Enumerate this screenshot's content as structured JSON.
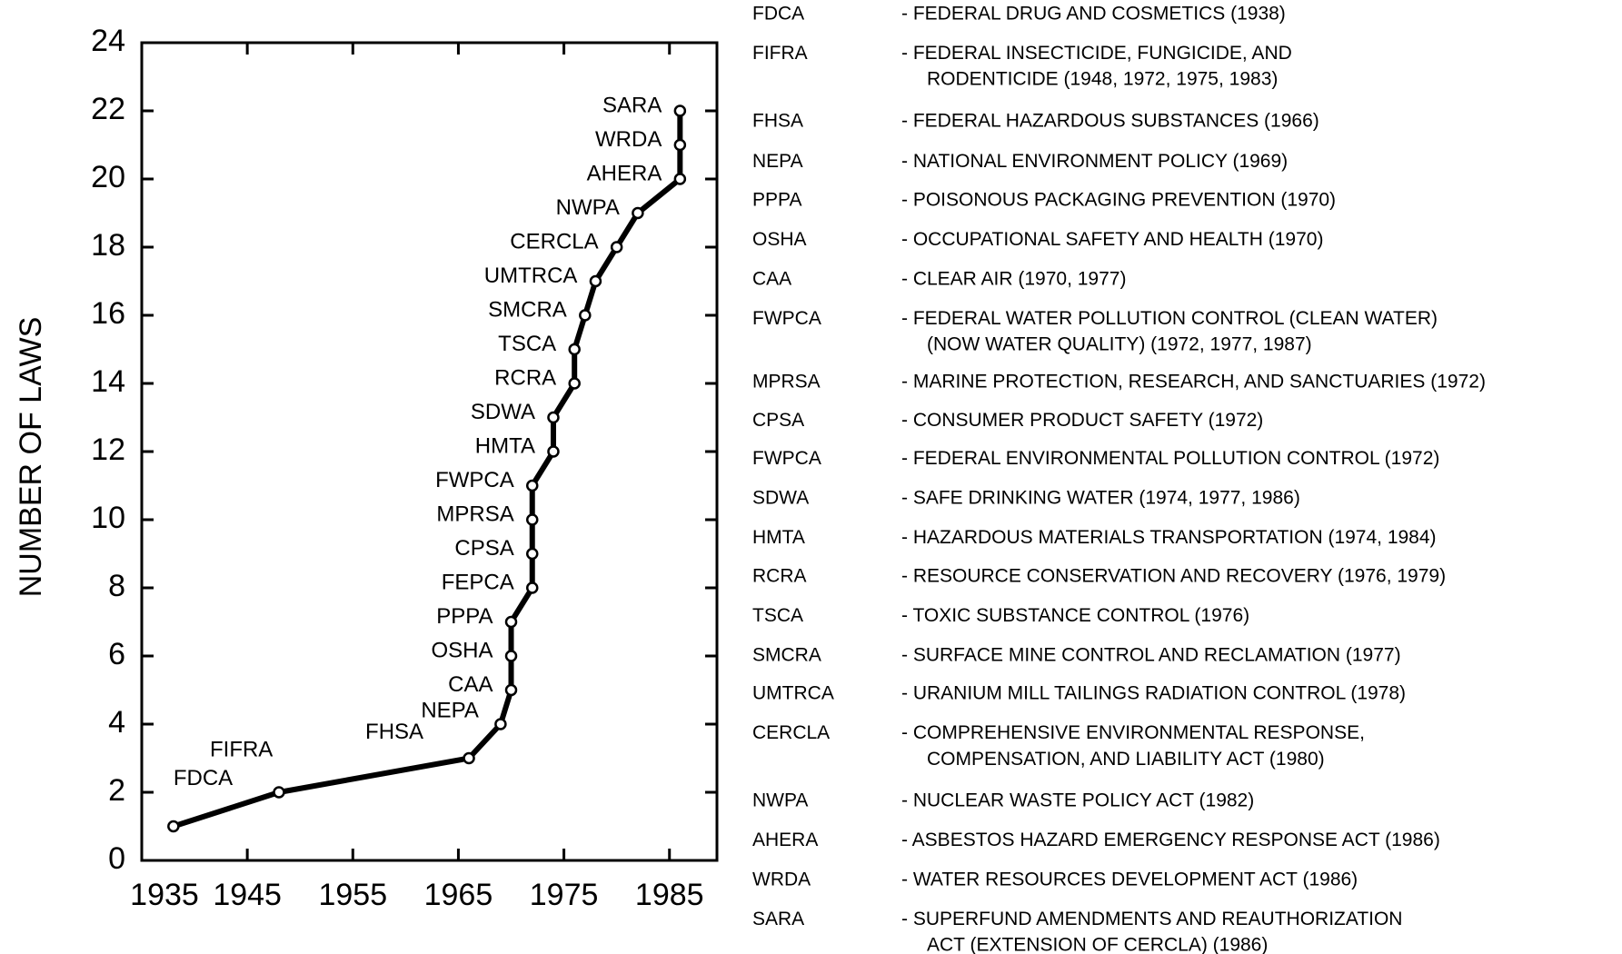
{
  "chart_data": {
    "type": "line",
    "y_label": "NUMBER OF LAWS",
    "x": [
      1938,
      1948,
      1966,
      1969,
      1970,
      1970,
      1970,
      1972,
      1972,
      1972,
      1972,
      1974,
      1974,
      1976,
      1976,
      1977,
      1978,
      1980,
      1982,
      1986,
      1986,
      1986
    ],
    "values": [
      1,
      2,
      3,
      4,
      5,
      6,
      7,
      8,
      9,
      10,
      11,
      12,
      13,
      14,
      15,
      16,
      17,
      18,
      19,
      20,
      21,
      22
    ],
    "point_labels": [
      "FDCA",
      "FIFRA",
      "FHSA",
      "NEPA",
      "CAA",
      "OSHA",
      "PPPA",
      "FEPCA",
      "CPSA",
      "MPRSA",
      "FWPCA",
      "HMTA",
      "SDWA",
      "RCRA",
      "TSCA",
      "SMCRA",
      "UMTRCA",
      "CERCLA",
      "NWPA",
      "AHERA",
      "WRDA",
      "SARA"
    ],
    "color": "#000000",
    "xlim": [
      1935,
      1989.5
    ],
    "xticks": [
      1935,
      1945,
      1955,
      1965,
      1975,
      1985
    ],
    "ylim": [
      0,
      24
    ],
    "yticks": [
      0,
      2,
      4,
      6,
      8,
      10,
      12,
      14,
      16,
      18,
      20,
      22,
      24
    ]
  },
  "glossary": [
    {
      "abbr": "FDCA",
      "lines": [
        "- FEDERAL DRUG AND COSMETICS (1938)"
      ]
    },
    {
      "abbr": "FIFRA",
      "lines": [
        "- FEDERAL INSECTICIDE, FUNGICIDE, AND",
        "RODENTICIDE (1948, 1972, 1975, 1983)"
      ]
    },
    {
      "abbr": "FHSA",
      "lines": [
        "- FEDERAL HAZARDOUS SUBSTANCES (1966)"
      ]
    },
    {
      "abbr": "NEPA",
      "lines": [
        "- NATIONAL ENVIRONMENT POLICY (1969)"
      ]
    },
    {
      "abbr": "PPPA",
      "lines": [
        "- POISONOUS PACKAGING PREVENTION (1970)"
      ]
    },
    {
      "abbr": "OSHA",
      "lines": [
        "- OCCUPATIONAL SAFETY AND HEALTH (1970)"
      ]
    },
    {
      "abbr": "CAA",
      "lines": [
        "- CLEAR AIR (1970, 1977)"
      ]
    },
    {
      "abbr": "FWPCA",
      "lines": [
        "- FEDERAL WATER POLLUTION CONTROL (CLEAN WATER)",
        "(NOW WATER QUALITY) (1972, 1977, 1987)"
      ]
    },
    {
      "abbr": "MPRSA",
      "lines": [
        "- MARINE PROTECTION, RESEARCH, AND SANCTUARIES (1972)"
      ]
    },
    {
      "abbr": "CPSA",
      "lines": [
        "- CONSUMER PRODUCT SAFETY (1972)"
      ]
    },
    {
      "abbr": "FWPCA",
      "lines": [
        "- FEDERAL ENVIRONMENTAL POLLUTION CONTROL (1972)"
      ]
    },
    {
      "abbr": "SDWA",
      "lines": [
        "- SAFE DRINKING WATER (1974, 1977, 1986)"
      ]
    },
    {
      "abbr": "HMTA",
      "lines": [
        "- HAZARDOUS MATERIALS TRANSPORTATION (1974, 1984)"
      ]
    },
    {
      "abbr": "RCRA",
      "lines": [
        "- RESOURCE CONSERVATION AND RECOVERY (1976, 1979)"
      ]
    },
    {
      "abbr": "TSCA",
      "lines": [
        "- TOXIC SUBSTANCE CONTROL (1976)"
      ]
    },
    {
      "abbr": "SMCRA",
      "lines": [
        "- SURFACE MINE CONTROL AND RECLAMATION (1977)"
      ]
    },
    {
      "abbr": "UMTRCA",
      "lines": [
        "- URANIUM MILL TAILINGS RADIATION CONTROL (1978)"
      ]
    },
    {
      "abbr": "CERCLA",
      "lines": [
        "- COMPREHENSIVE ENVIRONMENTAL RESPONSE,",
        "COMPENSATION, AND LIABILITY ACT (1980)"
      ]
    },
    {
      "abbr": "NWPA",
      "lines": [
        "- NUCLEAR WASTE POLICY ACT (1982)"
      ]
    },
    {
      "abbr": "AHERA",
      "lines": [
        "- ASBESTOS HAZARD EMERGENCY RESPONSE ACT (1986)"
      ]
    },
    {
      "abbr": "WRDA",
      "lines": [
        "- WATER RESOURCES DEVELOPMENT ACT (1986)"
      ]
    },
    {
      "abbr": "SARA",
      "lines": [
        "- SUPERFUND AMENDMENTS AND REAUTHORIZATION",
        "ACT (EXTENSION OF CERCLA) (1986)"
      ]
    }
  ]
}
